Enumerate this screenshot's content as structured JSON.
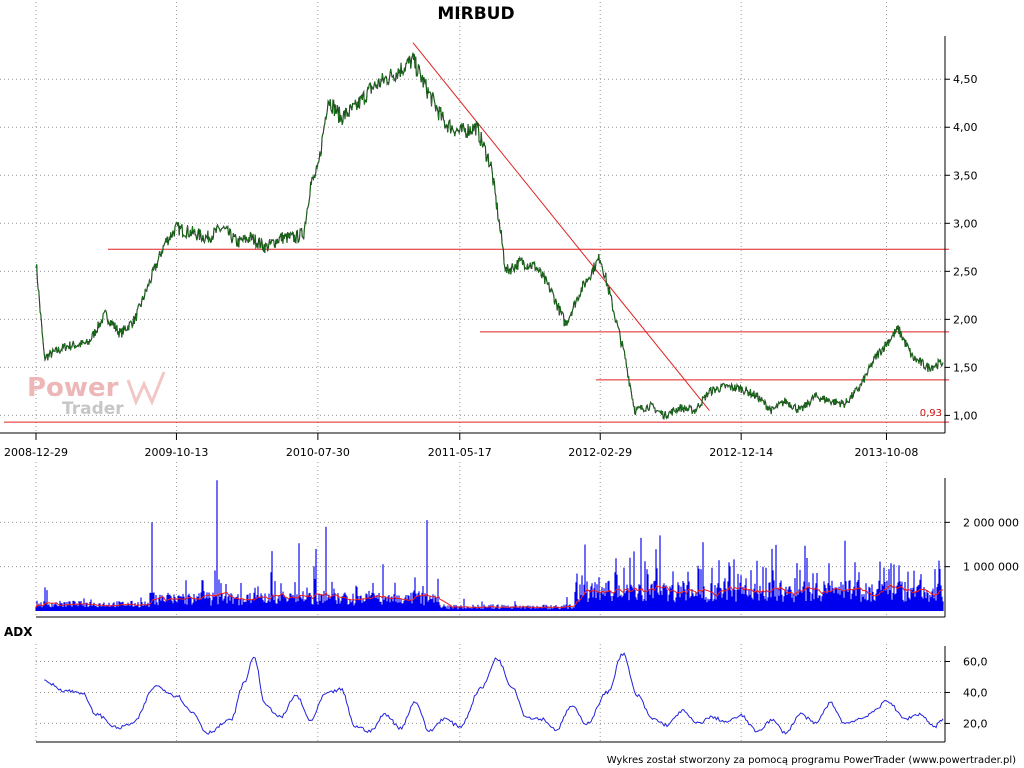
{
  "chart_data": [
    {
      "type": "line",
      "title": "MIRBUD",
      "x_tick_labels": [
        "2008-12-29",
        "2009-10-13",
        "2010-07-30",
        "2011-05-17",
        "2012-02-29",
        "2012-12-14",
        "2013-10-08"
      ],
      "y_tick_labels": [
        "1,00",
        "1,50",
        "2,00",
        "2,50",
        "3,00",
        "3,50",
        "4,00",
        "4,50"
      ],
      "ylim": [
        0.9,
        4.95
      ],
      "grid": true,
      "series": [
        {
          "color": "#1a7a1a",
          "points": [
            [
              "2008-12-29",
              2.6
            ],
            [
              "2009-01-15",
              1.6
            ],
            [
              "2009-03-01",
              1.72
            ],
            [
              "2009-04-15",
              1.75
            ],
            [
              "2009-05-20",
              2.05
            ],
            [
              "2009-06-20",
              1.85
            ],
            [
              "2009-07-20",
              2.0
            ],
            [
              "2009-08-20",
              2.4
            ],
            [
              "2009-09-20",
              2.8
            ],
            [
              "2009-10-13",
              2.95
            ],
            [
              "2009-11-15",
              2.9
            ],
            [
              "2009-12-15",
              2.85
            ],
            [
              "2010-01-15",
              2.95
            ],
            [
              "2010-02-15",
              2.8
            ],
            [
              "2010-03-15",
              2.85
            ],
            [
              "2010-04-15",
              2.75
            ],
            [
              "2010-05-15",
              2.85
            ],
            [
              "2010-06-15",
              2.85
            ],
            [
              "2010-07-01",
              2.9
            ],
            [
              "2010-07-15",
              3.4
            ],
            [
              "2010-07-30",
              3.55
            ],
            [
              "2010-08-20",
              4.3
            ],
            [
              "2010-09-15",
              4.1
            ],
            [
              "2010-10-15",
              4.2
            ],
            [
              "2010-11-15",
              4.4
            ],
            [
              "2010-12-15",
              4.5
            ],
            [
              "2011-01-15",
              4.6
            ],
            [
              "2011-02-10",
              4.7
            ],
            [
              "2011-03-10",
              4.4
            ],
            [
              "2011-04-15",
              4.05
            ],
            [
              "2011-05-17",
              3.95
            ],
            [
              "2011-06-20",
              4.0
            ],
            [
              "2011-07-20",
              3.6
            ],
            [
              "2011-08-20",
              2.5
            ],
            [
              "2011-09-20",
              2.6
            ],
            [
              "2011-10-20",
              2.55
            ],
            [
              "2011-11-20",
              2.3
            ],
            [
              "2011-12-20",
              1.95
            ],
            [
              "2012-01-20",
              2.3
            ],
            [
              "2012-02-29",
              2.65
            ],
            [
              "2012-03-20",
              2.25
            ],
            [
              "2012-04-20",
              1.6
            ],
            [
              "2012-05-10",
              1.05
            ],
            [
              "2012-06-10",
              1.1
            ],
            [
              "2012-07-10",
              1.0
            ],
            [
              "2012-08-10",
              1.08
            ],
            [
              "2012-09-10",
              1.05
            ],
            [
              "2012-10-10",
              1.25
            ],
            [
              "2012-11-10",
              1.3
            ],
            [
              "2012-12-14",
              1.28
            ],
            [
              "2013-01-15",
              1.2
            ],
            [
              "2013-02-15",
              1.05
            ],
            [
              "2013-03-15",
              1.15
            ],
            [
              "2013-04-15",
              1.05
            ],
            [
              "2013-05-15",
              1.2
            ],
            [
              "2013-06-15",
              1.15
            ],
            [
              "2013-07-15",
              1.12
            ],
            [
              "2013-08-15",
              1.3
            ],
            [
              "2013-09-15",
              1.6
            ],
            [
              "2013-10-08",
              1.75
            ],
            [
              "2013-11-01",
              1.9
            ],
            [
              "2013-12-01",
              1.6
            ],
            [
              "2014-01-01",
              1.5
            ],
            [
              "2014-02-01",
              1.55
            ]
          ]
        }
      ],
      "annotations": [
        {
          "type": "hline",
          "y": 2.73,
          "color": "#e02020"
        },
        {
          "type": "hline",
          "y": 1.87,
          "color": "#e02020"
        },
        {
          "type": "hline",
          "y": 1.37,
          "color": "#e02020"
        },
        {
          "type": "hline",
          "y": 0.93,
          "color": "#e02020",
          "label": "0,93"
        },
        {
          "type": "segment",
          "from": [
            "2011-02-10",
            4.88
          ],
          "to": [
            "2012-10-10",
            1.05
          ],
          "color": "#e02020"
        }
      ]
    },
    {
      "type": "bar",
      "y_tick_labels": [
        "1 000 000",
        "2 000 000"
      ],
      "ylim": [
        0,
        3000000
      ],
      "series": [
        {
          "color": "#0000ee",
          "values_desc": "daily volume"
        },
        {
          "color": "#ee2020",
          "values_desc": "moving average of volume"
        }
      ]
    },
    {
      "type": "line",
      "panel_label": "ADX",
      "y_tick_labels": [
        "20,0",
        "40,0",
        "60,0"
      ],
      "ylim": [
        8,
        70
      ],
      "series": [
        {
          "color": "#2222dd",
          "points": [
            [
              "2009-01-15",
              47
            ],
            [
              "2009-03-01",
              41
            ],
            [
              "2009-04-01",
              40
            ],
            [
              "2009-05-01",
              26
            ],
            [
              "2009-06-15",
              17
            ],
            [
              "2009-07-15",
              20
            ],
            [
              "2009-09-01",
              44
            ],
            [
              "2009-10-13",
              38
            ],
            [
              "2009-11-15",
              27
            ],
            [
              "2009-12-15",
              14
            ],
            [
              "2010-02-01",
              22
            ],
            [
              "2010-03-01",
              46
            ],
            [
              "2010-03-20",
              63
            ],
            [
              "2010-04-15",
              31
            ],
            [
              "2010-05-15",
              24
            ],
            [
              "2010-06-15",
              38
            ],
            [
              "2010-07-15",
              22
            ],
            [
              "2010-08-15",
              39
            ],
            [
              "2010-09-15",
              42
            ],
            [
              "2010-10-15",
              18
            ],
            [
              "2010-11-15",
              15
            ],
            [
              "2010-12-15",
              26
            ],
            [
              "2011-01-15",
              17
            ],
            [
              "2011-02-15",
              34
            ],
            [
              "2011-03-15",
              15
            ],
            [
              "2011-04-15",
              23
            ],
            [
              "2011-05-17",
              18
            ],
            [
              "2011-07-01",
              43
            ],
            [
              "2011-08-01",
              62
            ],
            [
              "2011-09-01",
              44
            ],
            [
              "2011-10-01",
              24
            ],
            [
              "2011-11-01",
              23
            ],
            [
              "2011-12-01",
              16
            ],
            [
              "2012-01-01",
              31
            ],
            [
              "2012-02-01",
              20
            ],
            [
              "2012-03-15",
              40
            ],
            [
              "2012-04-15",
              65
            ],
            [
              "2012-05-15",
              38
            ],
            [
              "2012-06-15",
              23
            ],
            [
              "2012-07-15",
              19
            ],
            [
              "2012-08-15",
              28
            ],
            [
              "2012-09-15",
              20
            ],
            [
              "2012-10-15",
              24
            ],
            [
              "2012-11-15",
              21
            ],
            [
              "2012-12-14",
              25
            ],
            [
              "2013-01-15",
              15
            ],
            [
              "2013-02-15",
              22
            ],
            [
              "2013-03-15",
              14
            ],
            [
              "2013-04-15",
              26
            ],
            [
              "2013-05-15",
              20
            ],
            [
              "2013-06-15",
              33
            ],
            [
              "2013-07-15",
              20
            ],
            [
              "2013-08-15",
              23
            ],
            [
              "2013-09-15",
              28
            ],
            [
              "2013-10-08",
              35
            ],
            [
              "2013-11-15",
              23
            ],
            [
              "2013-12-15",
              26
            ],
            [
              "2014-01-15",
              18
            ],
            [
              "2014-02-01",
              23
            ]
          ]
        }
      ]
    }
  ],
  "watermark": {
    "line1": "Power",
    "line2": "Trader"
  },
  "footer": "Wykres został stworzony za pomocą programu PowerTrader (www.powertrader.pl)"
}
